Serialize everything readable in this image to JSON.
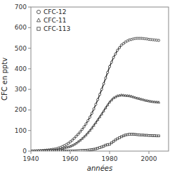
{
  "chart_data": {
    "type": "line",
    "xlabel": "années",
    "ylabel": "CFC en pptv",
    "xlim": [
      1940,
      2010
    ],
    "ylim": [
      0,
      700
    ],
    "xticks": [
      1940,
      1960,
      1980,
      2000
    ],
    "yticks": [
      0,
      100,
      200,
      300,
      400,
      500,
      600,
      700
    ],
    "grid": false,
    "legend": "upper left",
    "x": [
      1940,
      1941,
      1942,
      1943,
      1944,
      1945,
      1946,
      1947,
      1948,
      1949,
      1950,
      1951,
      1952,
      1953,
      1954,
      1955,
      1956,
      1957,
      1958,
      1959,
      1960,
      1961,
      1962,
      1963,
      1964,
      1965,
      1966,
      1967,
      1968,
      1969,
      1970,
      1971,
      1972,
      1973,
      1974,
      1975,
      1976,
      1977,
      1978,
      1979,
      1980,
      1981,
      1982,
      1983,
      1984,
      1985,
      1986,
      1987,
      1988,
      1989,
      1990,
      1991,
      1992,
      1993,
      1994,
      1995,
      1996,
      1997,
      1998,
      1999,
      2000,
      2001,
      2002,
      2003,
      2004,
      2005
    ],
    "series": [
      {
        "name": "CFC-12",
        "color": "#333333",
        "marker": "circle",
        "values": [
          0,
          0.5,
          1,
          1.5,
          2,
          2.5,
          3,
          4,
          5,
          6,
          7,
          8.5,
          10,
          12,
          15,
          18,
          22,
          27,
          32,
          38,
          45,
          53,
          62,
          72,
          82,
          93,
          105,
          118,
          132,
          148,
          165,
          184,
          205,
          227,
          250,
          275,
          300,
          327,
          355,
          382,
          410,
          432,
          455,
          472,
          490,
          502,
          515,
          522,
          530,
          535,
          540,
          542,
          545,
          547,
          548,
          548,
          548,
          547,
          546,
          545,
          543,
          542,
          541,
          540,
          539,
          538
        ]
      },
      {
        "name": "CFC-11",
        "color": "#333333",
        "marker": "triangle",
        "values": [
          0,
          0,
          0.5,
          0.5,
          1,
          1,
          1.5,
          2,
          2.5,
          3,
          3.5,
          4.5,
          5,
          6.5,
          8,
          10,
          12,
          15,
          18,
          20,
          23,
          27,
          32,
          38,
          45,
          52,
          60,
          69,
          78,
          89,
          100,
          112,
          125,
          138,
          152,
          166,
          180,
          195,
          210,
          224,
          238,
          248,
          258,
          263,
          268,
          270,
          272,
          271,
          270,
          269,
          268,
          266,
          263,
          260,
          257,
          255,
          252,
          250,
          247,
          245,
          243,
          241,
          240,
          239,
          238,
          237
        ]
      },
      {
        "name": "CFC-113",
        "color": "#333333",
        "marker": "square",
        "values": [
          0,
          0,
          0,
          0,
          0,
          0,
          0,
          0,
          0,
          0,
          0,
          0,
          0,
          0.5,
          0.5,
          0.5,
          0.5,
          0.5,
          0.5,
          0.5,
          1,
          1,
          1,
          1.5,
          2,
          2.5,
          3,
          3.5,
          4,
          5,
          6,
          7.5,
          9,
          11,
          14,
          17,
          20,
          24,
          29,
          31,
          33,
          40,
          47,
          54,
          60,
          65,
          70,
          74,
          78,
          80,
          82,
          82,
          82,
          81,
          80,
          79,
          78,
          78,
          77,
          77,
          76,
          76,
          75,
          75,
          74,
          74
        ]
      }
    ]
  }
}
